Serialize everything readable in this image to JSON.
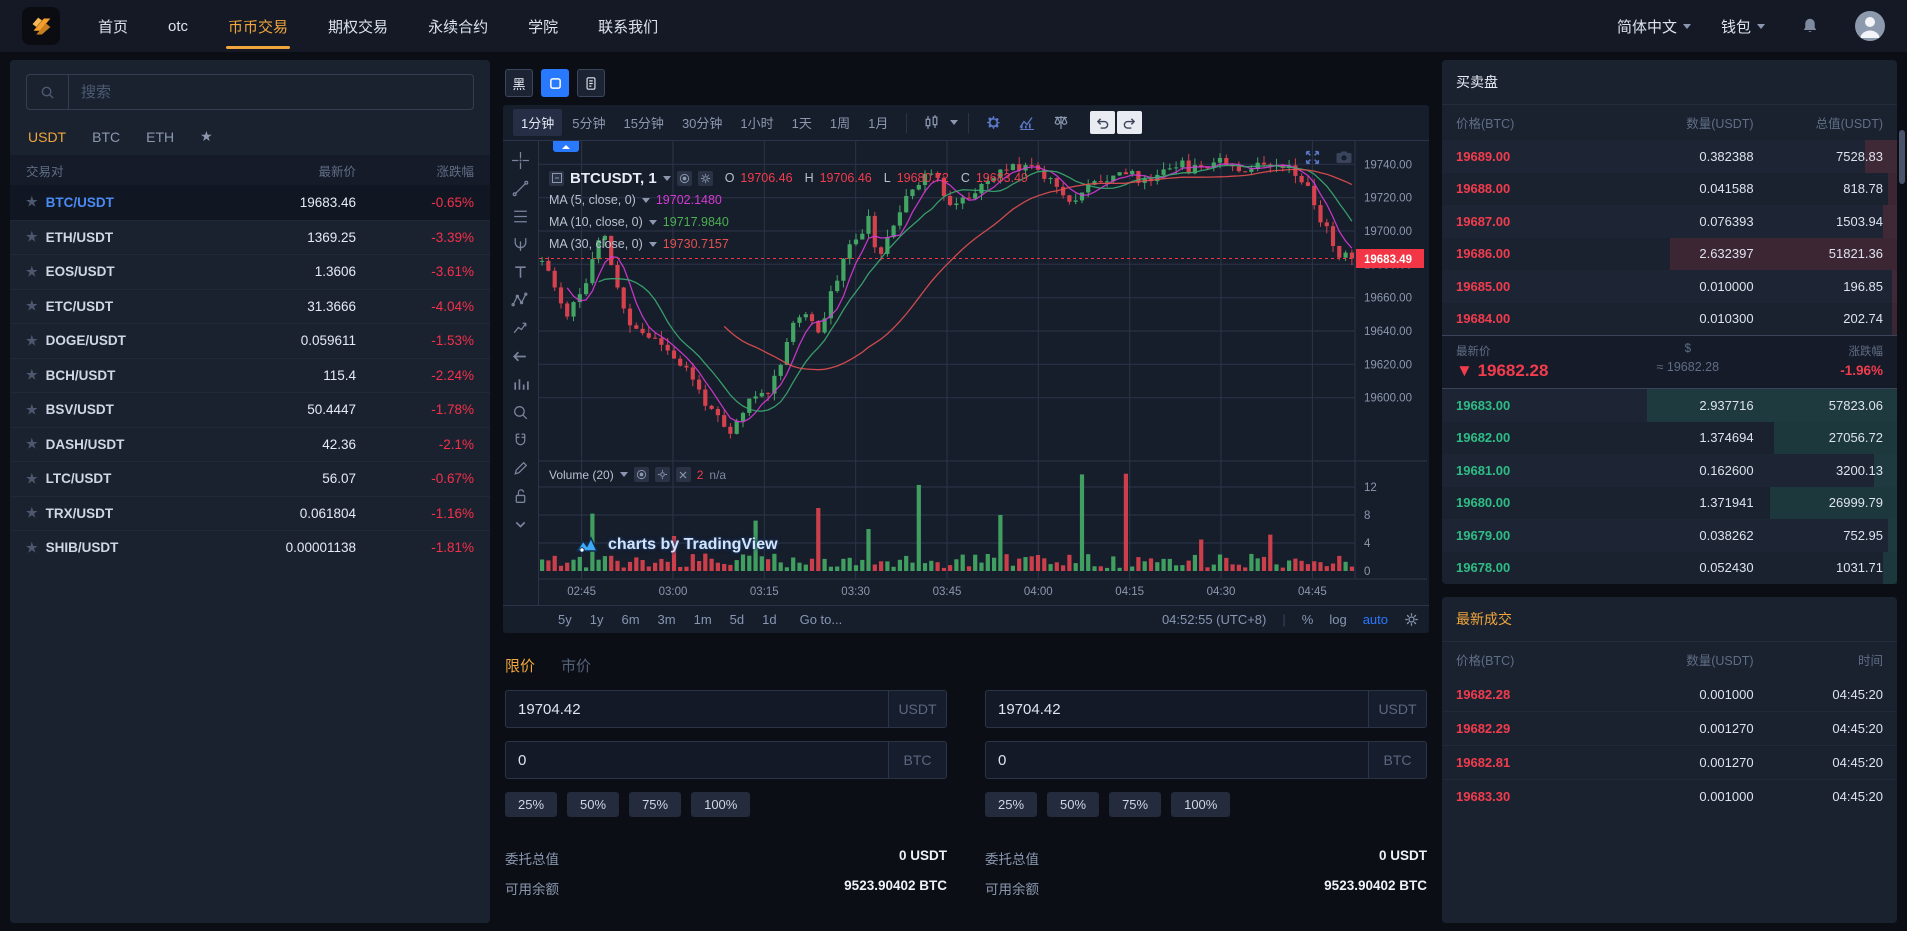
{
  "icons": {
    "star": "★",
    "down_triangle": "▼"
  },
  "colors": {
    "accent_orange": "#f0a63c",
    "red": "#f23c4d",
    "green": "#2ebd85",
    "candle_up": "#43a564",
    "candle_down": "#d5414d",
    "ma5": "#d53ad5",
    "ma10": "#3cab70",
    "ma30": "#e25050",
    "blue": "#2979ff",
    "link_blue": "#4a8af4",
    "grid": "#2c3549",
    "axis_text": "#8b98ad",
    "price_tag_bg": "#f23645"
  },
  "navbar": {
    "items": [
      {
        "label": "首页",
        "active": false
      },
      {
        "label": "otc",
        "active": false
      },
      {
        "label": "币币交易",
        "active": true
      },
      {
        "label": "期权交易",
        "active": false
      },
      {
        "label": "永续合约",
        "active": false
      },
      {
        "label": "学院",
        "active": false
      },
      {
        "label": "联系我们",
        "active": false
      }
    ],
    "language": "简体中文",
    "wallet": "钱包"
  },
  "sidebar": {
    "search_placeholder": "搜索",
    "tabs": [
      {
        "label": "USDT",
        "active": true
      },
      {
        "label": "BTC",
        "active": false
      },
      {
        "label": "ETH",
        "active": false
      },
      {
        "label": "★",
        "active": false,
        "is_star": true
      }
    ],
    "columns": {
      "pair": "交易对",
      "price": "最新价",
      "change": "涨跌幅"
    },
    "pairs": [
      {
        "name": "BTC/USDT",
        "price": "19683.46",
        "change": "-0.65%",
        "selected": true
      },
      {
        "name": "ETH/USDT",
        "price": "1369.25",
        "change": "-3.39%"
      },
      {
        "name": "EOS/USDT",
        "price": "1.3606",
        "change": "-3.61%"
      },
      {
        "name": "ETC/USDT",
        "price": "31.3666",
        "change": "-4.04%"
      },
      {
        "name": "DOGE/USDT",
        "price": "0.059611",
        "change": "-1.53%"
      },
      {
        "name": "BCH/USDT",
        "price": "115.4",
        "change": "-2.24%"
      },
      {
        "name": "BSV/USDT",
        "price": "50.4447",
        "change": "-1.78%"
      },
      {
        "name": "DASH/USDT",
        "price": "42.36",
        "change": "-2.1%"
      },
      {
        "name": "LTC/USDT",
        "price": "56.07",
        "change": "-0.67%"
      },
      {
        "name": "TRX/USDT",
        "price": "0.061804",
        "change": "-1.16%"
      },
      {
        "name": "SHIB/USDT",
        "price": "0.00001138",
        "change": "-1.81%"
      }
    ]
  },
  "chart": {
    "theme_black_label": "黑",
    "timeframes": [
      {
        "label": "1分钟",
        "active": true
      },
      {
        "label": "5分钟"
      },
      {
        "label": "15分钟"
      },
      {
        "label": "30分钟"
      },
      {
        "label": "1小时"
      },
      {
        "label": "1天"
      },
      {
        "label": "1周"
      },
      {
        "label": "1月"
      }
    ],
    "legend": {
      "symbol": "BTCUSDT, 1",
      "o_label": "O",
      "o": "19706.46",
      "h_label": "H",
      "h": "19706.46",
      "l_label": "L",
      "l": "19680.72",
      "c_label": "C",
      "c": "19683.49"
    },
    "mas": [
      {
        "label": "MA (5, close, 0)",
        "value": "19702.1480",
        "color": "#d53ad5"
      },
      {
        "label": "MA (10, close, 0)",
        "value": "19717.9840",
        "color": "#4caf50"
      },
      {
        "label": "MA (30, close, 0)",
        "value": "19730.7157",
        "color": "#e25050"
      }
    ],
    "volume_legend": {
      "label": "Volume (20)",
      "value": "2",
      "na": "n/a"
    },
    "watermark": "charts by TradingView",
    "price_tag": "19683.49",
    "ranges": [
      "5y",
      "1y",
      "6m",
      "3m",
      "1m",
      "5d",
      "1d"
    ],
    "goto": "Go to...",
    "clock": "04:52:55 (UTC+8)",
    "scales": [
      {
        "label": "%",
        "active": false
      },
      {
        "label": "log",
        "active": false
      },
      {
        "label": "auto",
        "active": true
      }
    ],
    "tools": [
      "crosshair",
      "trendline",
      "fib-retracement",
      "pitchfork",
      "text",
      "xabcd-pattern",
      "forecast",
      "hide-panel-arrow",
      "bar-pattern",
      "zoom",
      "magnet",
      "drawing-pencil",
      "unlock",
      "collapse-toolbar"
    ]
  },
  "chart_data": {
    "type": "candlestick",
    "symbol": "BTCUSDT",
    "interval": "1分钟",
    "minutes_total": 134,
    "x_ticks": [
      {
        "label": "02:45",
        "minute": 7
      },
      {
        "label": "03:00",
        "minute": 22
      },
      {
        "label": "03:15",
        "minute": 37
      },
      {
        "label": "03:30",
        "minute": 52
      },
      {
        "label": "03:45",
        "minute": 67
      },
      {
        "label": "04:00",
        "minute": 82
      },
      {
        "label": "04:15",
        "minute": 97
      },
      {
        "label": "04:30",
        "minute": 112
      },
      {
        "label": "04:45",
        "minute": 127
      }
    ],
    "ylim": [
      19562,
      19754
    ],
    "price_ticks": [
      "19740.00",
      "19720.00",
      "19700.00",
      "19680.00",
      "19660.00",
      "19640.00",
      "19620.00",
      "19600.00"
    ],
    "price_tick_values": [
      19740,
      19720,
      19700,
      19680,
      19660,
      19640,
      19620,
      19600
    ],
    "volume_ticks": [
      12,
      8,
      4,
      0
    ],
    "volume_max": 14,
    "candle_count": 130,
    "seed": 11,
    "ohlc_current": {
      "open": 19706.46,
      "high": 19706.46,
      "low": 19680.72,
      "close": 19683.49
    },
    "last_close": 19683.49,
    "ma_periods": [
      5,
      10,
      30
    ],
    "price_anchors": [
      [
        0,
        19682
      ],
      [
        4,
        19650
      ],
      [
        7,
        19667
      ],
      [
        10,
        19700
      ],
      [
        14,
        19645
      ],
      [
        20,
        19632
      ],
      [
        24,
        19616
      ],
      [
        28,
        19592
      ],
      [
        31,
        19576
      ],
      [
        34,
        19597
      ],
      [
        38,
        19607
      ],
      [
        42,
        19650
      ],
      [
        46,
        19642
      ],
      [
        50,
        19686
      ],
      [
        54,
        19706
      ],
      [
        56,
        19682
      ],
      [
        60,
        19722
      ],
      [
        64,
        19736
      ],
      [
        68,
        19716
      ],
      [
        72,
        19723
      ],
      [
        76,
        19736
      ],
      [
        80,
        19741
      ],
      [
        84,
        19732
      ],
      [
        88,
        19718
      ],
      [
        92,
        19731
      ],
      [
        96,
        19736
      ],
      [
        100,
        19729
      ],
      [
        104,
        19741
      ],
      [
        108,
        19737
      ],
      [
        112,
        19744
      ],
      [
        116,
        19737
      ],
      [
        122,
        19743
      ],
      [
        126,
        19731
      ],
      [
        129,
        19706
      ],
      [
        132,
        19685
      ],
      [
        134,
        19683.5
      ]
    ],
    "volume_spikes": [
      [
        8,
        8.2
      ],
      [
        21,
        5
      ],
      [
        34,
        7.2
      ],
      [
        44,
        9
      ],
      [
        52,
        6
      ],
      [
        60,
        12.3
      ],
      [
        73,
        8
      ],
      [
        86,
        13.8
      ],
      [
        93,
        13.9
      ],
      [
        105,
        4.5
      ],
      [
        116,
        5.2
      ]
    ]
  },
  "order_form": {
    "tabs": [
      {
        "label": "限价",
        "active": true
      },
      {
        "label": "市价",
        "active": false
      }
    ],
    "percents": [
      "25%",
      "50%",
      "75%",
      "100%"
    ],
    "buy": {
      "price": "19704.42",
      "price_unit": "USDT",
      "amount": "0",
      "amount_unit": "BTC",
      "total_label": "委托总值",
      "total_value": "0 USDT",
      "balance_label": "可用余额",
      "balance_value": "9523.90402 BTC"
    },
    "sell": {
      "price": "19704.42",
      "price_unit": "USDT",
      "amount": "0",
      "amount_unit": "BTC",
      "total_label": "委托总值",
      "total_value": "0 USDT",
      "balance_label": "可用余额",
      "balance_value": "9523.90402 BTC"
    }
  },
  "orderbook": {
    "title": "买卖盘",
    "columns": {
      "price": "价格(BTC)",
      "qty": "数量(USDT)",
      "total": "总值(USDT)"
    },
    "asks": [
      {
        "price": "19689.00",
        "qty": "0.382388",
        "total": "7528.83",
        "depth": 0.07
      },
      {
        "price": "19688.00",
        "qty": "0.041588",
        "total": "818.78",
        "depth": 0.02
      },
      {
        "price": "19687.00",
        "qty": "0.076393",
        "total": "1503.94",
        "depth": 0.03
      },
      {
        "price": "19686.00",
        "qty": "2.632397",
        "total": "51821.36",
        "depth": 0.5
      },
      {
        "price": "19685.00",
        "qty": "0.010000",
        "total": "196.85",
        "depth": 0.01
      },
      {
        "price": "19684.00",
        "qty": "0.010300",
        "total": "202.74",
        "depth": 0.01
      }
    ],
    "last": {
      "label": "最新价",
      "arrow": "▼",
      "price": "19682.28",
      "usd_symbol": "$",
      "approx": "≈ 19682.28",
      "change_label": "涨跌幅",
      "change": "-1.96%"
    },
    "bids": [
      {
        "price": "19683.00",
        "qty": "2.937716",
        "total": "57823.06",
        "depth": 0.55
      },
      {
        "price": "19682.00",
        "qty": "1.374694",
        "total": "27056.72",
        "depth": 0.27
      },
      {
        "price": "19681.00",
        "qty": "0.162600",
        "total": "3200.13",
        "depth": 0.05
      },
      {
        "price": "19680.00",
        "qty": "1.371941",
        "total": "26999.79",
        "depth": 0.28
      },
      {
        "price": "19679.00",
        "qty": "0.038262",
        "total": "752.95",
        "depth": 0.02
      },
      {
        "price": "19678.00",
        "qty": "0.052430",
        "total": "1031.71",
        "depth": 0.03
      }
    ]
  },
  "trades": {
    "title": "最新成交",
    "columns": {
      "price": "价格(BTC)",
      "qty": "数量(USDT)",
      "time": "时间"
    },
    "rows": [
      {
        "price": "19682.28",
        "qty": "0.001000",
        "time": "04:45:20"
      },
      {
        "price": "19682.29",
        "qty": "0.001270",
        "time": "04:45:20"
      },
      {
        "price": "19682.81",
        "qty": "0.001270",
        "time": "04:45:20"
      },
      {
        "price": "19683.30",
        "qty": "0.001000",
        "time": "04:45:20"
      }
    ]
  }
}
